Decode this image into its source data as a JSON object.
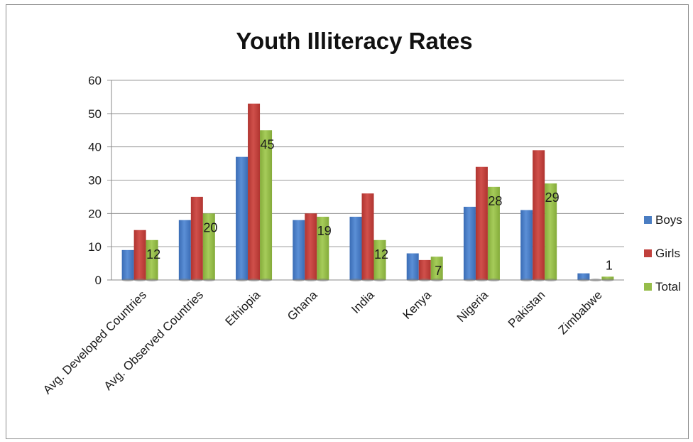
{
  "chart_data": {
    "type": "bar",
    "title": "Youth Illiteracy Rates",
    "xlabel": "",
    "ylabel": "",
    "ylim": [
      0,
      60
    ],
    "yticks": [
      0,
      10,
      20,
      30,
      40,
      50,
      60
    ],
    "grid": true,
    "legend_position": "right",
    "categories": [
      "Avg. Developed Countries",
      "Avg. Observed Countries",
      "Ethiopia",
      "Ghana",
      "India",
      "Kenya",
      "Nigeria",
      "Pakistan",
      "Zimbabwe"
    ],
    "series": [
      {
        "name": "Boys",
        "color": "#4a7dc2",
        "values": [
          9,
          18,
          37,
          18,
          19,
          8,
          22,
          21,
          2
        ]
      },
      {
        "name": "Girls",
        "color": "#c0403c",
        "values": [
          15,
          25,
          53,
          20,
          26,
          6,
          34,
          39,
          0
        ]
      },
      {
        "name": "Total",
        "color": "#96bd4a",
        "values": [
          12,
          20,
          45,
          19,
          12,
          7,
          28,
          29,
          1
        ]
      }
    ],
    "data_labels_series": "Total"
  }
}
